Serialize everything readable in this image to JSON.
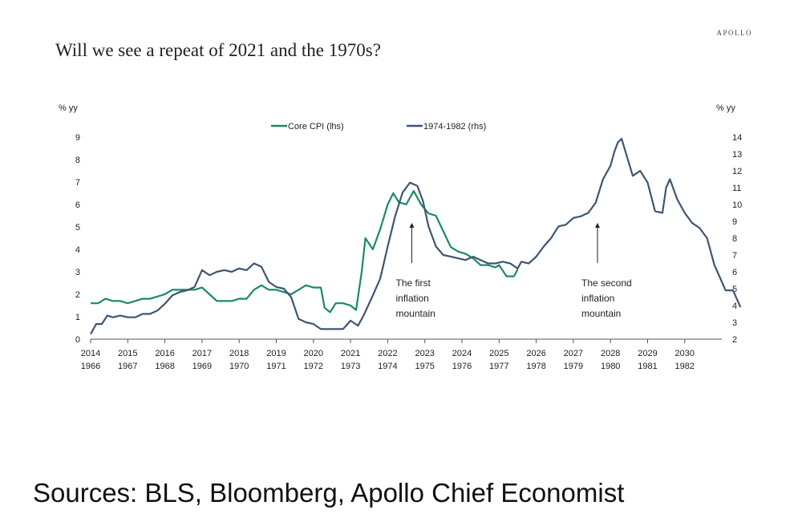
{
  "header": {
    "title": "Will we see a repeat of 2021 and the 1970s?",
    "brand": "APOLLO"
  },
  "footer": {
    "source": "Sources: BLS, Bloomberg, Apollo Chief Economist"
  },
  "chart_data": {
    "type": "line",
    "left_axis_unit": "% yy",
    "right_axis_unit": "% yy",
    "ylim_left": [
      0,
      9
    ],
    "ylim_right": [
      2,
      14
    ],
    "yticks_left": [
      "0",
      "1",
      "2",
      "3",
      "4",
      "5",
      "6",
      "7",
      "8",
      "9"
    ],
    "yticks_right": [
      "2",
      "3",
      "4",
      "5",
      "6",
      "7",
      "8",
      "9",
      "10",
      "11",
      "12",
      "13",
      "14"
    ],
    "xlim": [
      2014,
      2031
    ],
    "xticks_top": [
      "2014",
      "2015",
      "2016",
      "2017",
      "2018",
      "2019",
      "2020",
      "2021",
      "2022",
      "2023",
      "2024",
      "2025",
      "2026",
      "2027",
      "2028",
      "2029",
      "2030"
    ],
    "xticks_bottom": [
      "1966",
      "1967",
      "1968",
      "1969",
      "1970",
      "1971",
      "1972",
      "1973",
      "1974",
      "1975",
      "1976",
      "1977",
      "1978",
      "1979",
      "1980",
      "1981",
      "1982"
    ],
    "grid": false,
    "legend_position": "top-center",
    "series": [
      {
        "name": "Core CPI (lhs)",
        "axis": "left",
        "color": "#1a8a6a",
        "points": [
          [
            2014.0,
            1.6
          ],
          [
            2014.2,
            1.6
          ],
          [
            2014.4,
            1.8
          ],
          [
            2014.6,
            1.7
          ],
          [
            2014.8,
            1.7
          ],
          [
            2015.0,
            1.6
          ],
          [
            2015.2,
            1.7
          ],
          [
            2015.4,
            1.8
          ],
          [
            2015.6,
            1.8
          ],
          [
            2015.8,
            1.9
          ],
          [
            2016.0,
            2.0
          ],
          [
            2016.2,
            2.2
          ],
          [
            2016.4,
            2.2
          ],
          [
            2016.6,
            2.2
          ],
          [
            2016.8,
            2.2
          ],
          [
            2017.0,
            2.3
          ],
          [
            2017.2,
            2.0
          ],
          [
            2017.4,
            1.7
          ],
          [
            2017.6,
            1.7
          ],
          [
            2017.8,
            1.7
          ],
          [
            2018.0,
            1.8
          ],
          [
            2018.2,
            1.8
          ],
          [
            2018.4,
            2.2
          ],
          [
            2018.6,
            2.4
          ],
          [
            2018.8,
            2.2
          ],
          [
            2019.0,
            2.2
          ],
          [
            2019.2,
            2.1
          ],
          [
            2019.4,
            2.0
          ],
          [
            2019.6,
            2.2
          ],
          [
            2019.8,
            2.4
          ],
          [
            2020.0,
            2.3
          ],
          [
            2020.2,
            2.3
          ],
          [
            2020.3,
            1.4
          ],
          [
            2020.45,
            1.2
          ],
          [
            2020.6,
            1.6
          ],
          [
            2020.8,
            1.6
          ],
          [
            2021.0,
            1.5
          ],
          [
            2021.15,
            1.3
          ],
          [
            2021.3,
            3.0
          ],
          [
            2021.4,
            4.5
          ],
          [
            2021.6,
            4.0
          ],
          [
            2021.8,
            4.9
          ],
          [
            2022.0,
            6.0
          ],
          [
            2022.15,
            6.5
          ],
          [
            2022.3,
            6.1
          ],
          [
            2022.5,
            6.0
          ],
          [
            2022.7,
            6.6
          ],
          [
            2022.9,
            6.0
          ],
          [
            2023.1,
            5.6
          ],
          [
            2023.3,
            5.5
          ],
          [
            2023.5,
            4.8
          ],
          [
            2023.7,
            4.1
          ],
          [
            2023.9,
            3.9
          ],
          [
            2024.1,
            3.8
          ],
          [
            2024.3,
            3.6
          ],
          [
            2024.5,
            3.3
          ],
          [
            2024.7,
            3.3
          ],
          [
            2024.9,
            3.2
          ],
          [
            2025.0,
            3.3
          ],
          [
            2025.2,
            2.8
          ],
          [
            2025.4,
            2.8
          ],
          [
            2025.5,
            3.1
          ]
        ]
      },
      {
        "name": "1974-1982 (rhs)",
        "axis": "right",
        "color": "#3f5570",
        "points": [
          [
            2014.0,
            2.3
          ],
          [
            2014.15,
            2.9
          ],
          [
            2014.3,
            2.9
          ],
          [
            2014.45,
            3.4
          ],
          [
            2014.6,
            3.3
          ],
          [
            2014.8,
            3.4
          ],
          [
            2015.0,
            3.3
          ],
          [
            2015.2,
            3.3
          ],
          [
            2015.4,
            3.5
          ],
          [
            2015.6,
            3.5
          ],
          [
            2015.8,
            3.7
          ],
          [
            2016.0,
            4.1
          ],
          [
            2016.2,
            4.6
          ],
          [
            2016.4,
            4.8
          ],
          [
            2016.6,
            4.9
          ],
          [
            2016.8,
            5.1
          ],
          [
            2017.0,
            6.1
          ],
          [
            2017.2,
            5.8
          ],
          [
            2017.4,
            6.0
          ],
          [
            2017.6,
            6.1
          ],
          [
            2017.8,
            6.0
          ],
          [
            2018.0,
            6.2
          ],
          [
            2018.2,
            6.1
          ],
          [
            2018.4,
            6.5
          ],
          [
            2018.6,
            6.3
          ],
          [
            2018.8,
            5.4
          ],
          [
            2019.0,
            5.1
          ],
          [
            2019.2,
            5.0
          ],
          [
            2019.4,
            4.5
          ],
          [
            2019.6,
            3.2
          ],
          [
            2019.8,
            3.0
          ],
          [
            2020.0,
            2.9
          ],
          [
            2020.2,
            2.6
          ],
          [
            2020.4,
            2.6
          ],
          [
            2020.6,
            2.6
          ],
          [
            2020.8,
            2.6
          ],
          [
            2021.0,
            3.1
          ],
          [
            2021.2,
            2.8
          ],
          [
            2021.35,
            3.4
          ],
          [
            2021.6,
            4.6
          ],
          [
            2021.8,
            5.6
          ],
          [
            2022.0,
            7.5
          ],
          [
            2022.2,
            9.3
          ],
          [
            2022.4,
            10.7
          ],
          [
            2022.6,
            11.3
          ],
          [
            2022.8,
            11.1
          ],
          [
            2022.95,
            10.2
          ],
          [
            2023.1,
            8.7
          ],
          [
            2023.3,
            7.5
          ],
          [
            2023.5,
            7.0
          ],
          [
            2023.7,
            6.9
          ],
          [
            2023.9,
            6.8
          ],
          [
            2024.1,
            6.7
          ],
          [
            2024.3,
            6.9
          ],
          [
            2024.5,
            6.7
          ],
          [
            2024.7,
            6.5
          ],
          [
            2024.9,
            6.5
          ],
          [
            2025.1,
            6.6
          ],
          [
            2025.3,
            6.5
          ],
          [
            2025.5,
            6.2
          ],
          [
            2025.6,
            6.6
          ],
          [
            2025.8,
            6.5
          ],
          [
            2026.0,
            6.9
          ],
          [
            2026.2,
            7.5
          ],
          [
            2026.4,
            8.0
          ],
          [
            2026.6,
            8.7
          ],
          [
            2026.8,
            8.8
          ],
          [
            2027.0,
            9.2
          ],
          [
            2027.2,
            9.3
          ],
          [
            2027.4,
            9.5
          ],
          [
            2027.6,
            10.1
          ],
          [
            2027.8,
            11.5
          ],
          [
            2028.0,
            12.3
          ],
          [
            2028.1,
            13.1
          ],
          [
            2028.2,
            13.7
          ],
          [
            2028.3,
            13.9
          ],
          [
            2028.45,
            12.8
          ],
          [
            2028.6,
            11.7
          ],
          [
            2028.8,
            12.0
          ],
          [
            2029.0,
            11.3
          ],
          [
            2029.2,
            9.6
          ],
          [
            2029.4,
            9.5
          ],
          [
            2029.5,
            11.0
          ],
          [
            2029.6,
            11.5
          ],
          [
            2029.8,
            10.3
          ],
          [
            2030.0,
            9.5
          ],
          [
            2030.2,
            8.9
          ],
          [
            2030.4,
            8.6
          ],
          [
            2030.6,
            8.0
          ],
          [
            2030.8,
            6.4
          ],
          [
            2031.0,
            5.4
          ],
          [
            2031.1,
            4.9
          ],
          [
            2031.3,
            4.9
          ],
          [
            2031.4,
            4.4
          ],
          [
            2031.5,
            3.9
          ]
        ]
      }
    ],
    "annotations": [
      {
        "lines": [
          "The first",
          "inflation",
          "mountain"
        ],
        "x": 2022.65
      },
      {
        "lines": [
          "The second",
          "inflation",
          "mountain"
        ],
        "x": 2027.65
      }
    ]
  }
}
